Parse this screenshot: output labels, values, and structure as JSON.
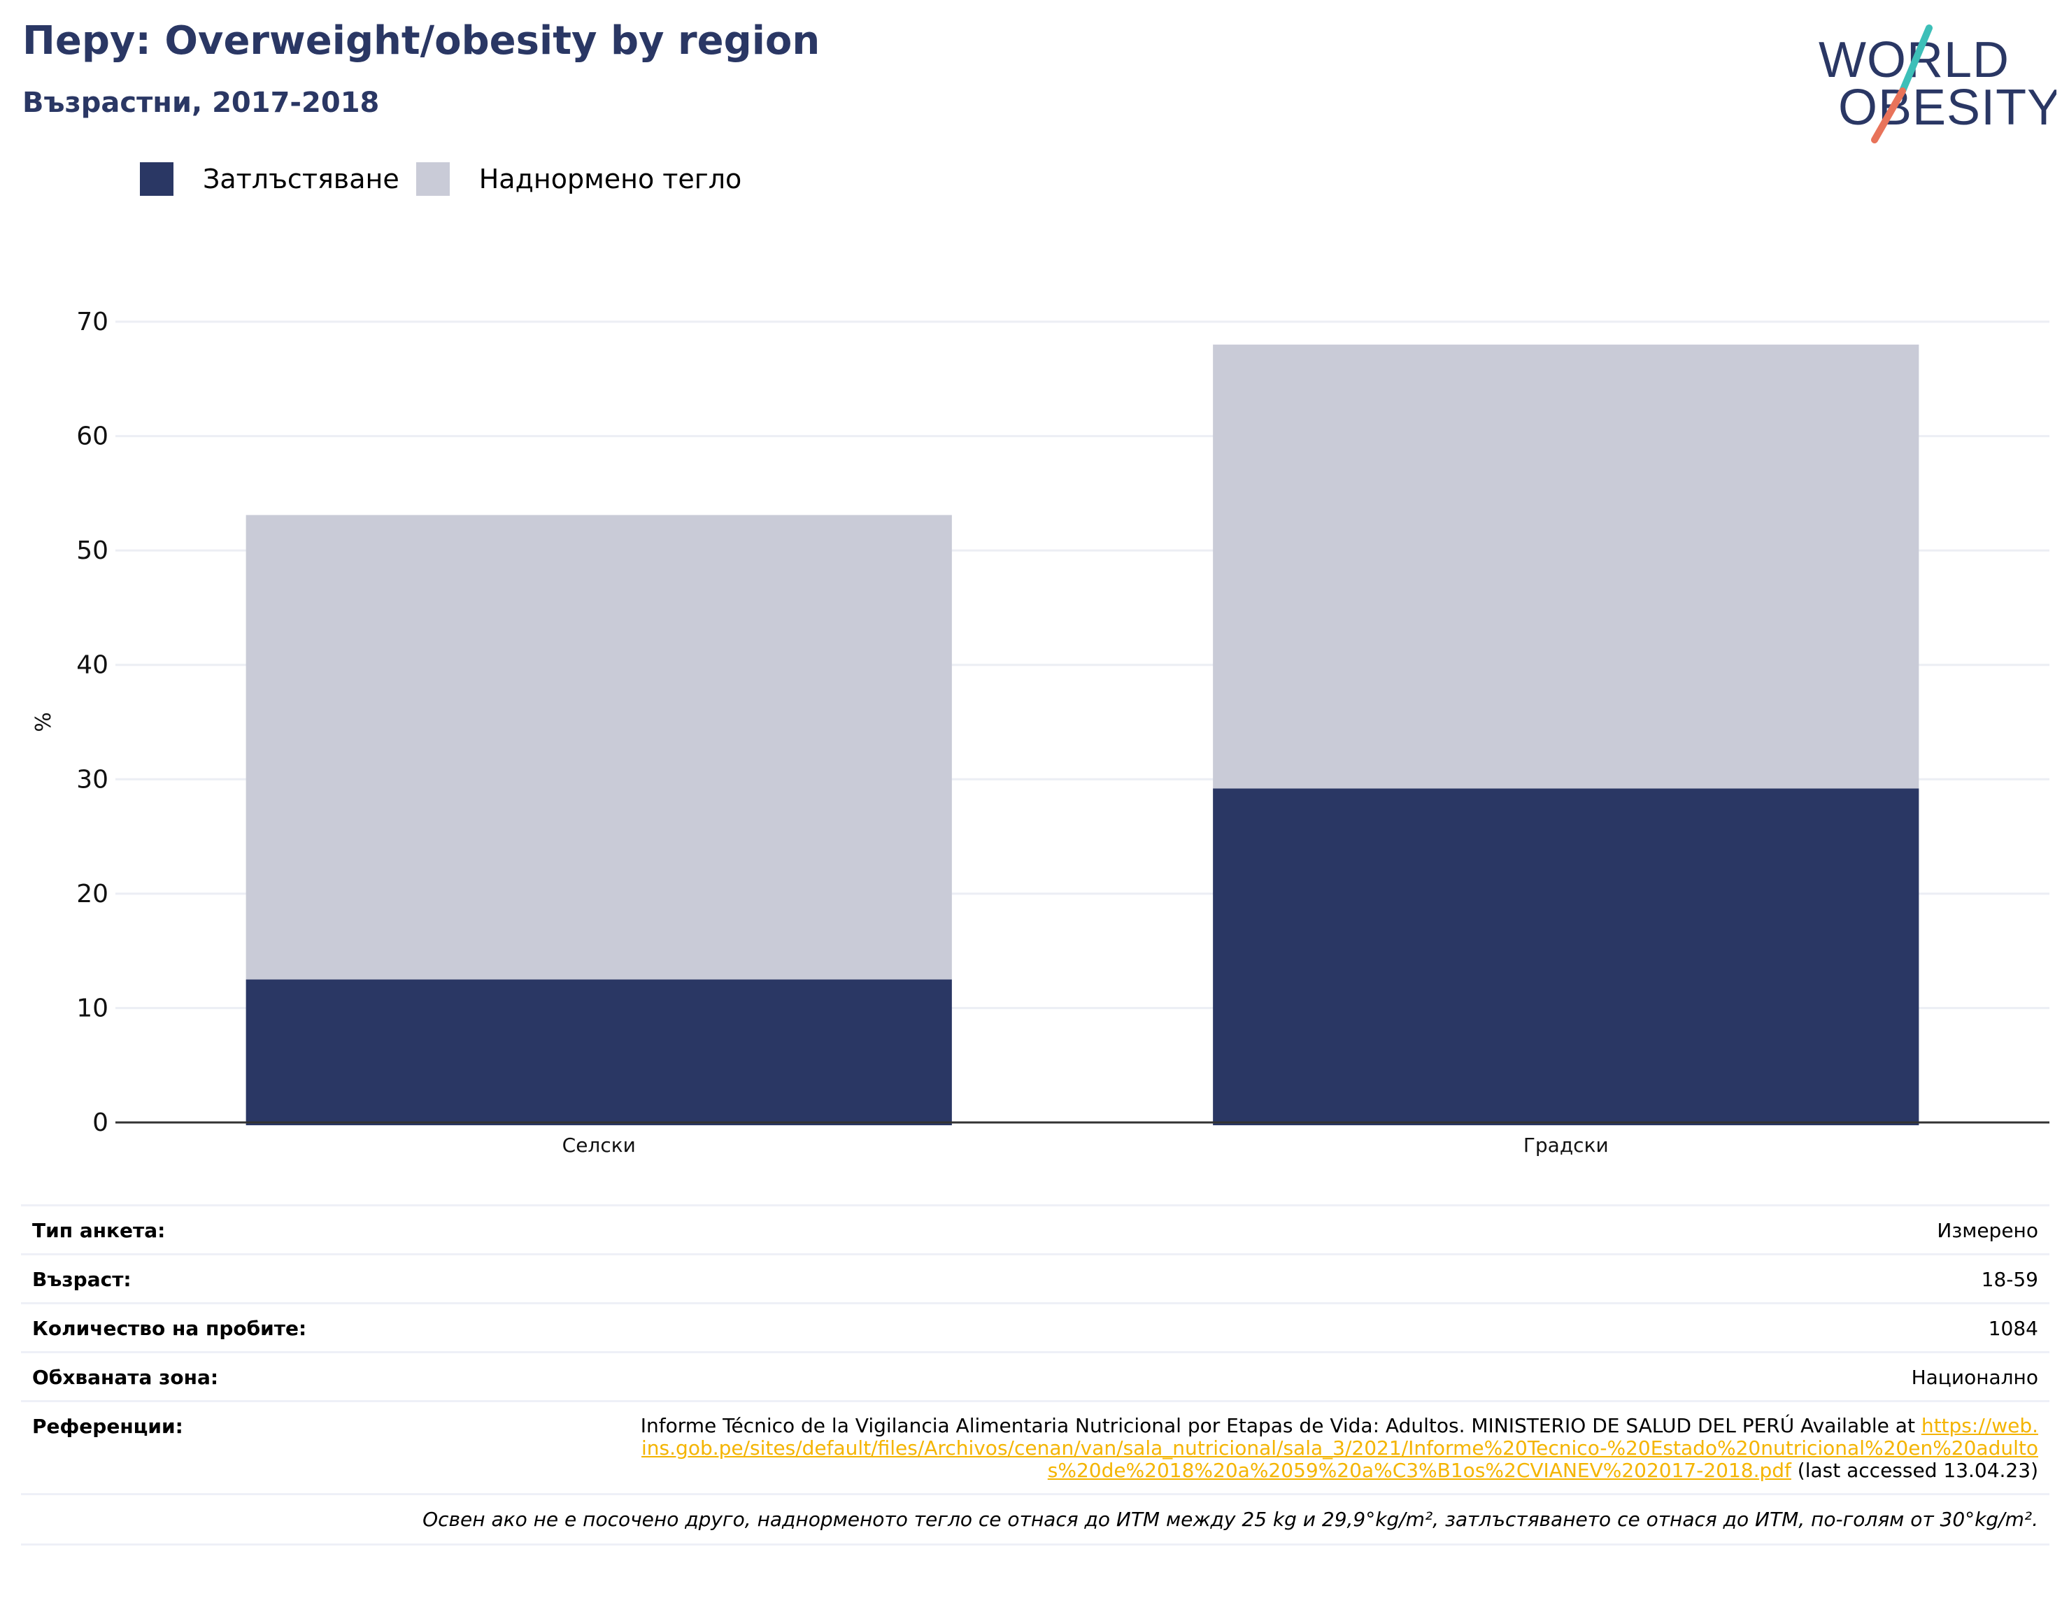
{
  "header": {
    "title": "Перу: Overweight/obesity by region",
    "subtitle": "Възрастни, 2017-2018"
  },
  "logo": {
    "line1": "WORLD",
    "line2": "OBESITY",
    "colors": {
      "text": "#2a3764",
      "slash_top": "#3dbfb8",
      "slash_bottom": "#e8735a"
    }
  },
  "legend": [
    {
      "label": "Затлъстяване",
      "color": "#2a3764"
    },
    {
      "label": "Наднормено тегло",
      "color": "#c9cbd7"
    }
  ],
  "chart_data": {
    "type": "bar",
    "stacked": true,
    "categories": [
      "Селски",
      "Градски"
    ],
    "series": [
      {
        "name": "Затлъстяване",
        "values": [
          12.5,
          29.2
        ],
        "color": "#2a3764"
      },
      {
        "name": "Наднормено тегло",
        "values": [
          40.6,
          38.8
        ],
        "color": "#c9cbd7"
      }
    ],
    "ylabel": "%",
    "ylim": [
      0,
      70
    ],
    "yticks": [
      0,
      10,
      20,
      30,
      40,
      50,
      60,
      70
    ],
    "grid": true,
    "legend_position": "top-left"
  },
  "info": {
    "rows": [
      {
        "label": "Тип анкета:",
        "value": "Измерено"
      },
      {
        "label": "Възраст:",
        "value": "18-59"
      },
      {
        "label": "Количество на пробите:",
        "value": "1084"
      },
      {
        "label": "Обхваната зона:",
        "value": "Национално"
      }
    ],
    "reference": {
      "label": "Референции:",
      "text_before": "Informe Técnico de la Vigilancia Alimentaria Nutricional por Etapas de Vida: Adultos. MINISTERIO DE SALUD DEL PERÚ Available at",
      "link": "https://web.ins.gob.pe/sites/default/files/Archivos/cenan/van/sala_nutricional/sala_3/2021/Informe%20Tecnico-%20Estado%20nutricional%20en%20adultos%20de%2018%20a%2059%20a%C3%B1os%2CVIANEV%202017-2018.pdf",
      "text_after": "(last accessed 13.04.23)"
    },
    "note": "Освен ако не е посочено друго, наднорменото тегло се отнася до ИТМ между 25 kg и 29,9°kg/m², затлъстяването се отнася до ИТМ, по-голям от 30°kg/m²."
  }
}
